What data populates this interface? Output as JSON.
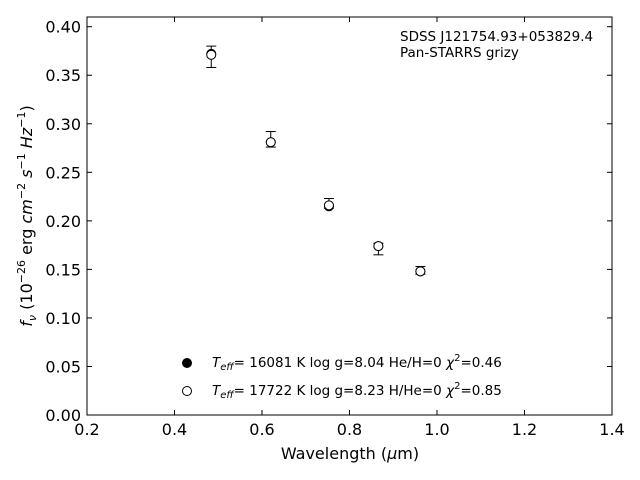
{
  "chart_data": {
    "type": "scatter",
    "xlabel": "Wavelength (μm)",
    "ylabel": "f_ν (10^-26 erg cm^-2 s^-1 Hz^-1)",
    "xlim": [
      0.2,
      1.4
    ],
    "ylim": [
      0.0,
      0.41
    ],
    "xticks": [
      "0.2",
      "0.4",
      "0.6",
      "0.8",
      "1.0",
      "1.2",
      "1.4"
    ],
    "yticks": [
      "0.00",
      "0.05",
      "0.10",
      "0.15",
      "0.20",
      "0.25",
      "0.30",
      "0.35",
      "0.40"
    ],
    "grid": false,
    "annotation": [
      "SDSS J121754.93+053829.4",
      "Pan-STARRS grizy"
    ],
    "observed": {
      "x": [
        0.484,
        0.62,
        0.753,
        0.866,
        0.962
      ],
      "y": [
        0.369,
        0.284,
        0.218,
        0.171,
        0.149
      ],
      "err": [
        0.011,
        0.008,
        0.005,
        0.006,
        0.004
      ]
    },
    "series": [
      {
        "name": "T_eff= 16081 K  log g=8.04  He/H=0  χ²=0.46",
        "marker": "filled-circle",
        "x": [
          0.484,
          0.62,
          0.753,
          0.866,
          0.962
        ],
        "y": [
          0.372,
          0.281,
          0.215,
          0.174,
          0.148
        ]
      },
      {
        "name": "T_eff= 17722 K  log g=8.23  H/He=0  χ²=0.85",
        "marker": "open-circle",
        "x": [
          0.484,
          0.62,
          0.753,
          0.866,
          0.962
        ],
        "y": [
          0.371,
          0.281,
          0.216,
          0.174,
          0.148
        ]
      }
    ]
  },
  "legend": [
    {
      "teff_prefix": "T",
      "teff_sub": "eff",
      "value": "= 16081 K  log g=8.04  He/H=0  ",
      "chi": "χ",
      "chi_sup": "2",
      "chi_value": "=0.46"
    },
    {
      "teff_prefix": "T",
      "teff_sub": "eff",
      "value": "= 17722 K  log g=8.23  H/He=0  ",
      "chi": "χ",
      "chi_sup": "2",
      "chi_value": "=0.85"
    }
  ],
  "axis_text": {
    "xlabel_main": "Wavelength (",
    "xlabel_mu": "μ",
    "xlabel_unit": "m)",
    "ylabel_f": "f",
    "ylabel_nu": "ν",
    "ylabel_open": " (10",
    "ylabel_exp1": "−26",
    "ylabel_erg": " erg ",
    "ylabel_cm": "cm",
    "ylabel_exp2": "−2",
    "ylabel_s": " s",
    "ylabel_exp3": "−1",
    "ylabel_hz": " Hz",
    "ylabel_exp4": "−1",
    "ylabel_close": ")"
  }
}
